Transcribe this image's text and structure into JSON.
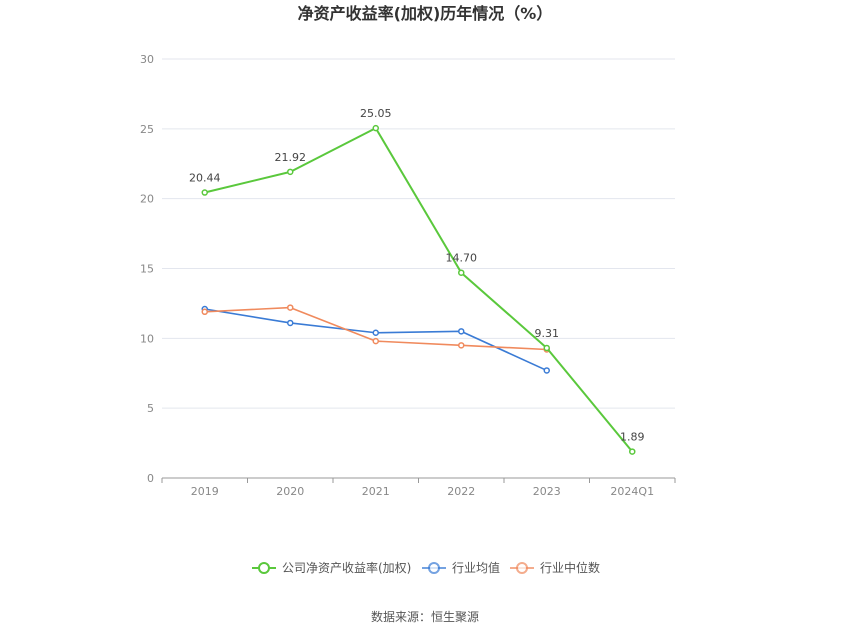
{
  "chart_data": {
    "type": "line",
    "title": "净资产收益率(加权)历年情况（%）",
    "categories": [
      "2019",
      "2020",
      "2021",
      "2022",
      "2023",
      "2024Q1"
    ],
    "ylim": [
      0,
      30
    ],
    "yticks": [
      "0",
      "5",
      "10",
      "15",
      "20",
      "25",
      "30"
    ],
    "grid": true,
    "legend_position": "bottom",
    "series": [
      {
        "name": "公司净资产收益率(加权)",
        "color": "#5ac83c",
        "values": [
          20.44,
          21.92,
          25.05,
          14.7,
          9.31,
          1.89
        ],
        "labels": [
          "20.44",
          "21.92",
          "25.05",
          "14.70",
          "9.31",
          "1.89"
        ]
      },
      {
        "name": "行业均值",
        "color": "#3a7bd5",
        "values": [
          12.1,
          11.1,
          10.4,
          10.5,
          7.7,
          null
        ]
      },
      {
        "name": "行业中位数",
        "color": "#f08a5d",
        "values": [
          11.9,
          12.2,
          9.8,
          9.5,
          9.2,
          null
        ]
      }
    ]
  },
  "source": "数据来源：恒生聚源"
}
